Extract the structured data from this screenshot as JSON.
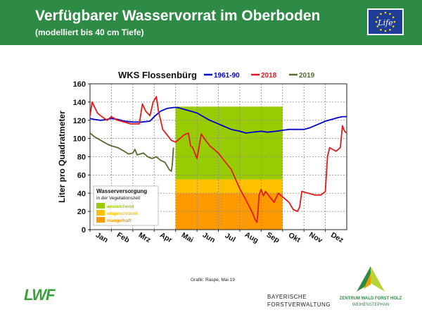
{
  "header": {
    "title": "Verfügbarer Wasservorrat im Oberboden",
    "subtitle": "(modelliert bis 40 cm Tiefe)",
    "bg_color": "#2e8b45"
  },
  "eu_logo": {
    "text": "Life"
  },
  "chart_data": {
    "type": "line",
    "title": "WKS Flossenbürg",
    "xlabel": "",
    "ylabel": "Liter pro Quadratmeter",
    "ylim": [
      0,
      160
    ],
    "yticks": [
      0,
      20,
      40,
      60,
      80,
      100,
      120,
      140,
      160
    ],
    "months": [
      "Jan",
      "Feb",
      "Mrz",
      "Apr",
      "Mai",
      "Jun",
      "Jul",
      "Aug",
      "Sep",
      "Okt",
      "Nov",
      "Dez"
    ],
    "grid": true,
    "legend_position": "top",
    "bands": [
      {
        "label": "ausreichend",
        "from": 55,
        "to": 135,
        "x_start": 4.0,
        "x_end": 9.0,
        "color": "#99cc00"
      },
      {
        "label": "eingeschränkt",
        "from": 40,
        "to": 55,
        "x_start": 4.0,
        "x_end": 9.0,
        "color": "#ffc000"
      },
      {
        "label": "mangelhaft",
        "from": 0,
        "to": 40,
        "x_start": 4.0,
        "x_end": 9.0,
        "color": "#ff9900"
      }
    ],
    "legend_box": {
      "title": "Wasserversorgung",
      "subtitle": "in der Vegetationszeit",
      "items": [
        "ausreichend",
        "eingeschränkt",
        "mangelhaft"
      ]
    },
    "series": [
      {
        "name": "1961-90",
        "color": "#0000cc",
        "x": [
          0,
          0.2,
          0.5,
          0.8,
          1.0,
          1.3,
          1.6,
          2.0,
          2.4,
          2.8,
          3.0,
          3.3,
          3.6,
          3.9,
          4.1,
          4.4,
          4.7,
          5.0,
          5.3,
          5.6,
          5.9,
          6.2,
          6.6,
          7.0,
          7.3,
          7.6,
          8.0,
          8.3,
          8.7,
          9.0,
          9.3,
          9.6,
          10.0,
          10.3,
          10.7,
          11.0,
          11.3,
          11.6,
          11.8,
          12.0
        ],
        "y": [
          122,
          121,
          120,
          121,
          122,
          121,
          119,
          118,
          118,
          119,
          124,
          130,
          133,
          134,
          134,
          132,
          130,
          128,
          124,
          120,
          117,
          114,
          110,
          108,
          106,
          107,
          108,
          107,
          108,
          109,
          110,
          110,
          110,
          112,
          116,
          119,
          121,
          123,
          124,
          124
        ]
      },
      {
        "name": "2018",
        "color": "#e31a1c",
        "x": [
          0,
          0.1,
          0.2,
          0.35,
          0.5,
          0.8,
          1.0,
          1.3,
          1.6,
          1.9,
          2.3,
          2.45,
          2.6,
          2.8,
          2.95,
          3.1,
          3.2,
          3.3,
          3.4,
          3.6,
          3.8,
          4.0,
          4.2,
          4.4,
          4.6,
          4.7,
          4.8,
          4.9,
          5.0,
          5.2,
          5.4,
          5.6,
          5.8,
          6.0,
          6.3,
          6.6,
          7.0,
          7.3,
          7.6,
          7.7,
          7.8,
          7.85,
          7.9,
          8.0,
          8.1,
          8.2,
          8.4,
          8.6,
          8.7,
          8.8,
          9.0,
          9.3,
          9.5,
          9.7,
          9.8,
          9.9,
          10.2,
          10.5,
          10.8,
          11.0,
          11.1,
          11.2,
          11.35,
          11.5,
          11.7,
          11.8,
          11.9,
          12.0
        ],
        "y": [
          125,
          140,
          135,
          128,
          125,
          120,
          124,
          120,
          118,
          116,
          116,
          138,
          130,
          125,
          140,
          146,
          130,
          120,
          110,
          104,
          98,
          96,
          100,
          104,
          106,
          92,
          90,
          84,
          78,
          105,
          98,
          92,
          88,
          84,
          75,
          66,
          45,
          32,
          18,
          12,
          8,
          20,
          38,
          44,
          37,
          42,
          36,
          30,
          35,
          40,
          36,
          30,
          22,
          20,
          25,
          42,
          40,
          38,
          38,
          42,
          80,
          90,
          88,
          86,
          90,
          114,
          108,
          106
        ]
      },
      {
        "name": "2019",
        "color": "#556b2f",
        "x": [
          0,
          0.2,
          0.5,
          0.8,
          1.0,
          1.3,
          1.6,
          1.8,
          2.0,
          2.1,
          2.2,
          2.5,
          2.7,
          2.9,
          3.1,
          3.3,
          3.5,
          3.6,
          3.7,
          3.8,
          3.85,
          3.9
        ],
        "y": [
          106,
          102,
          98,
          94,
          92,
          90,
          86,
          83,
          84,
          88,
          82,
          84,
          80,
          78,
          80,
          76,
          74,
          70,
          66,
          64,
          72,
          90
        ]
      }
    ]
  },
  "credit": "Grafik: Raspe, Mai 19",
  "logos": {
    "lwf": "LWF",
    "bfv_line1": "BAYERISCHE",
    "bfv_line2": "FORSTVERWALTUNG",
    "zentrum_line1": "ZENTRUM WALD FORST HOLZ",
    "zentrum_line2": "WEIHENSTEPHAN"
  }
}
